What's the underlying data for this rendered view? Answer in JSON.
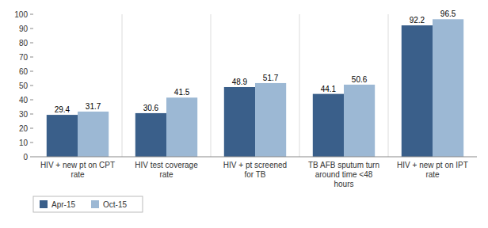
{
  "chart_data": {
    "type": "bar",
    "categories": [
      "HIV + new pt on CPT\nrate",
      "HIV test coverage\nrate",
      "HIV + pt screened\nfor TB",
      "TB AFB sputum turn\naround time <48\nhours",
      "HIV + new pt on IPT\nrate"
    ],
    "series": [
      {
        "name": "Apr-15",
        "color": "#3A5F8A",
        "values": [
          29.4,
          30.6,
          48.9,
          44.1,
          92.2
        ]
      },
      {
        "name": "Oct-15",
        "color": "#9CB8D4",
        "values": [
          31.7,
          41.5,
          51.7,
          50.6,
          96.5
        ]
      }
    ],
    "ylim": [
      0,
      100
    ],
    "yticks": [
      0,
      10,
      20,
      30,
      40,
      50,
      60,
      70,
      80,
      90,
      100
    ],
    "grid": false,
    "data_labels": true,
    "legend": "lower left"
  }
}
